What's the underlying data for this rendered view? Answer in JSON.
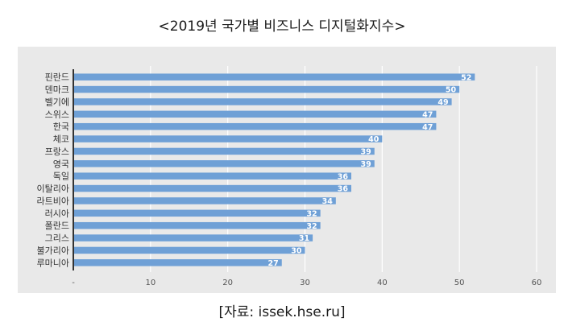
{
  "title": "<2019년 국가별 비즈니스 디지털화지수>",
  "source": "[자료: issek.hse.ru]",
  "chart_data": {
    "type": "bar",
    "orientation": "horizontal",
    "title": "<2019년 국가별 비즈니스 디지털화지수>",
    "categories": [
      "핀란드",
      "덴마크",
      "벨기에",
      "스위스",
      "한국",
      "체코",
      "프랑스",
      "영국",
      "독일",
      "이탈리아",
      "라트비아",
      "러시아",
      "폴란드",
      "그리스",
      "불가리아",
      "루마니아"
    ],
    "values": [
      52,
      50,
      49,
      47,
      47,
      40,
      39,
      39,
      36,
      36,
      34,
      32,
      32,
      31,
      30,
      27
    ],
    "xlim": [
      0,
      60
    ],
    "xticks": [
      "-",
      "10",
      "20",
      "30",
      "40",
      "50",
      "60"
    ],
    "grid": true,
    "data_labels": true,
    "legend": "none",
    "colors": {
      "bar": "#6fa0d6",
      "plot_bg": "#e9e9e9",
      "grid": "#ffffff",
      "axis": "#333333",
      "label": "#ffffff"
    }
  }
}
